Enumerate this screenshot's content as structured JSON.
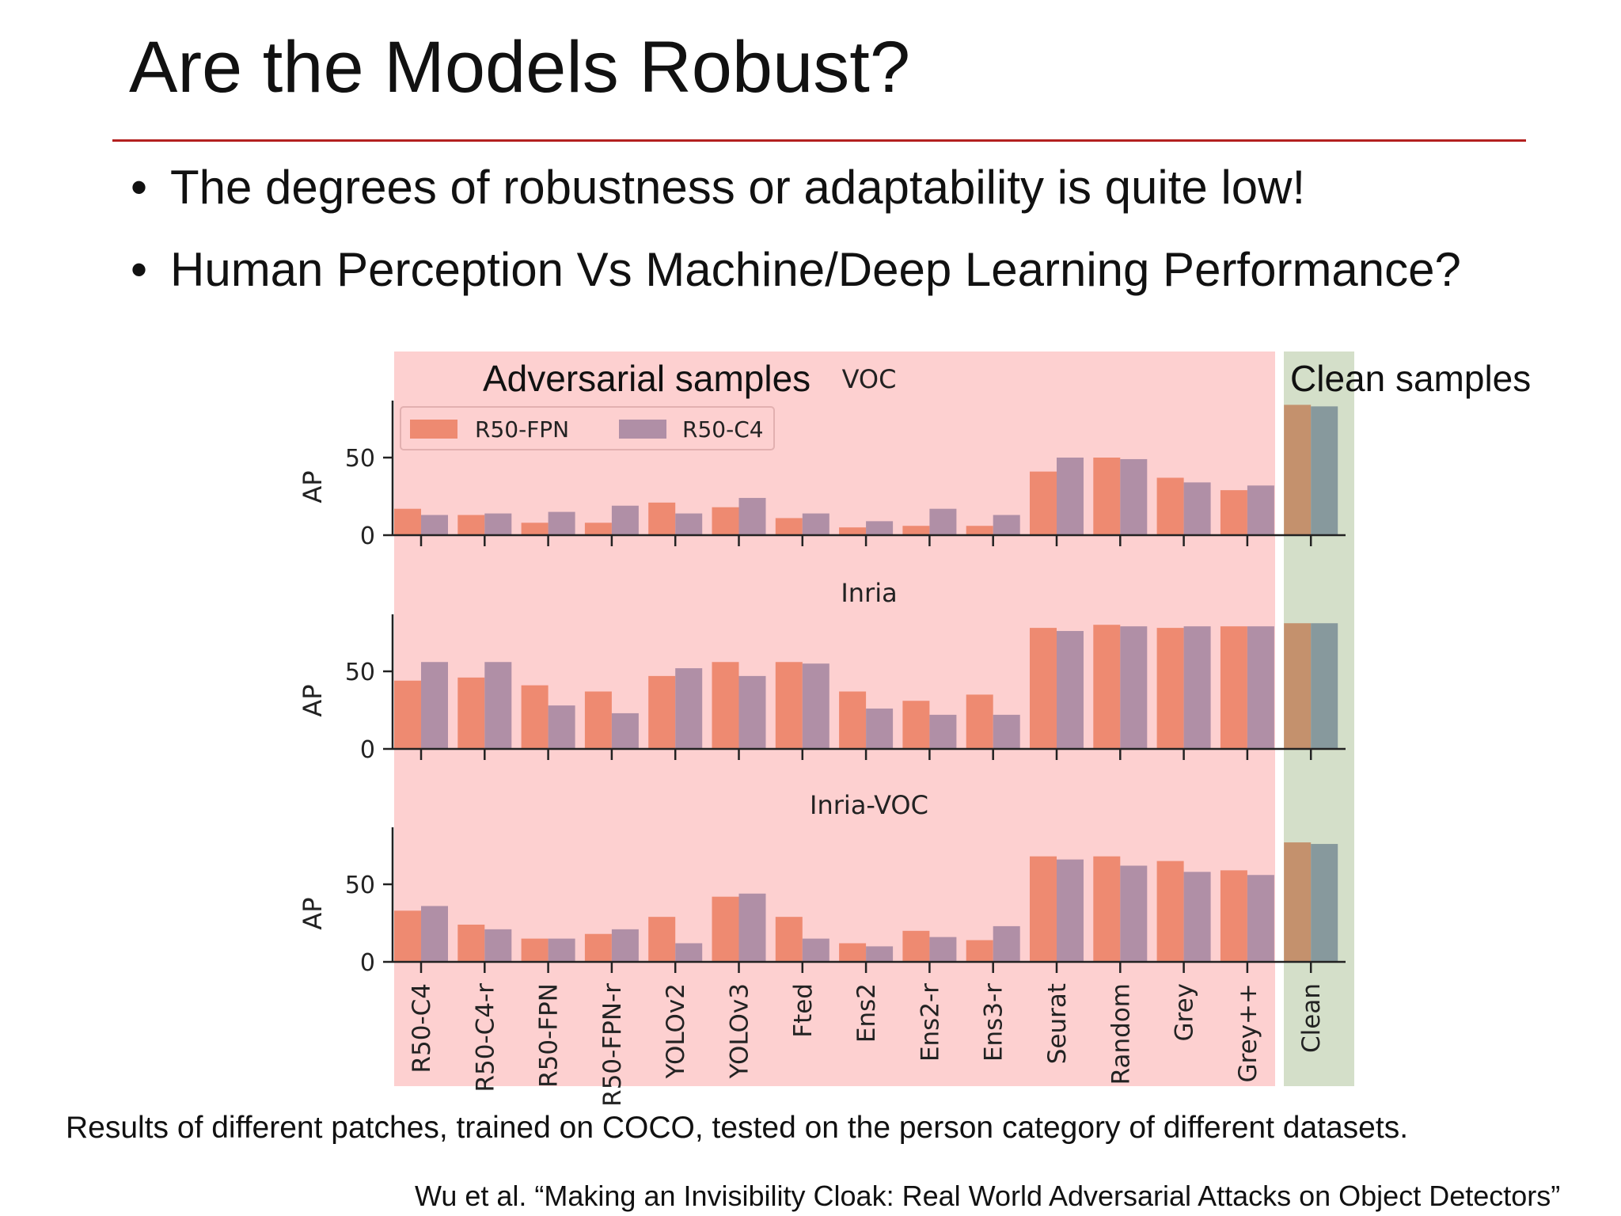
{
  "slide": {
    "title": "Are the Models Robust?",
    "bullets": [
      "The degrees of robustness or adaptability is quite low!",
      "Human Perception Vs Machine/Deep Learning Performance?"
    ],
    "bullet_symbol": "•",
    "adv_label": "Adversarial samples",
    "clean_label": "Clean samples",
    "caption": "Results of different patches, trained on COCO, tested on the person category of different datasets.",
    "citation": "Wu et al. “Making an Invisibility Cloak: Real World Adversarial Attacks on Object Detectors”",
    "colors": {
      "rule": "#b3201f",
      "adv_highlight": "#fdd0d0",
      "clean_highlight": "#d4dfc9",
      "fpn": "#ee8a71",
      "c4": "#b08fa6",
      "clean_fpn": "#c4916d",
      "clean_c4": "#87999d"
    }
  },
  "chart_data": {
    "type": "bar",
    "categories": [
      "R50-C4",
      "R50-C4-r",
      "R50-FPN",
      "R50-FPN-r",
      "YOLOv2",
      "YOLOv3",
      "Fted",
      "Ens2",
      "Ens2-r",
      "Ens3-r",
      "Seurat",
      "Random",
      "Grey",
      "Grey++",
      "Clean"
    ],
    "legend": [
      "R50-FPN",
      "R50-C4"
    ],
    "legend_position": "top-left",
    "ylabel": "AP",
    "yticks": [
      0,
      50
    ],
    "ylim": [
      0,
      90
    ],
    "panels": [
      {
        "title": "VOC",
        "series": [
          {
            "name": "R50-FPN",
            "values": [
              17,
              13,
              8,
              8,
              21,
              18,
              11,
              5,
              6,
              6,
              41,
              50,
              37,
              29,
              84
            ]
          },
          {
            "name": "R50-C4",
            "values": [
              13,
              14,
              15,
              19,
              14,
              24,
              14,
              9,
              17,
              13,
              50,
              49,
              34,
              32,
              83
            ]
          }
        ]
      },
      {
        "title": "Inria",
        "series": [
          {
            "name": "R50-FPN",
            "values": [
              44,
              46,
              41,
              37,
              47,
              56,
              56,
              37,
              31,
              35,
              78,
              80,
              78,
              79,
              81
            ]
          },
          {
            "name": "R50-C4",
            "values": [
              56,
              56,
              28,
              23,
              52,
              47,
              55,
              26,
              22,
              22,
              76,
              79,
              79,
              79,
              81
            ]
          }
        ]
      },
      {
        "title": "Inria-VOC",
        "series": [
          {
            "name": "R50-FPN",
            "values": [
              33,
              24,
              15,
              18,
              29,
              42,
              29,
              12,
              20,
              14,
              68,
              68,
              65,
              59,
              77
            ]
          },
          {
            "name": "R50-C4",
            "values": [
              36,
              21,
              15,
              21,
              12,
              44,
              15,
              10,
              16,
              23,
              66,
              62,
              58,
              56,
              76
            ]
          }
        ]
      }
    ]
  }
}
